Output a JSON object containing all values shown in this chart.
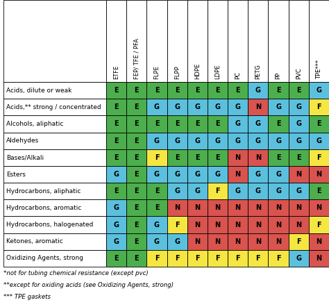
{
  "chemicals": [
    "Acids, dilute or weak",
    "Acids,** strong / concentrated",
    "Alcohols, aliphatic",
    "Aldehydes",
    "Bases/Alkali",
    "Esters",
    "Hydrocarbons, aliphatic",
    "Hydrocarbons, aromatic",
    "Hydrocarbons, halogenated",
    "Ketones, aromatic",
    "Oxidizing Agents, strong"
  ],
  "materials": [
    "ETFE",
    "FEP/ TFE / PFA",
    "FLPE",
    "FLPP",
    "HDPE",
    "LDPE",
    "PC",
    "PETG",
    "PP",
    "PVC",
    "TPE***"
  ],
  "ratings": [
    [
      "E",
      "E",
      "E",
      "E",
      "E",
      "E",
      "E",
      "G",
      "E",
      "E",
      "G"
    ],
    [
      "E",
      "E",
      "G",
      "G",
      "G",
      "G",
      "G",
      "N",
      "G",
      "G",
      "F"
    ],
    [
      "E",
      "E",
      "E",
      "E",
      "E",
      "E",
      "G",
      "G",
      "E",
      "G",
      "E"
    ],
    [
      "E",
      "E",
      "G",
      "G",
      "G",
      "G",
      "G",
      "G",
      "G",
      "G",
      "G"
    ],
    [
      "E",
      "E",
      "F",
      "E",
      "E",
      "E",
      "N",
      "N",
      "E",
      "E",
      "F"
    ],
    [
      "G",
      "E",
      "G",
      "G",
      "G",
      "G",
      "N",
      "G",
      "G",
      "N",
      "N"
    ],
    [
      "E",
      "E",
      "E",
      "G",
      "G",
      "F",
      "G",
      "G",
      "G",
      "G",
      "E"
    ],
    [
      "G",
      "E",
      "E",
      "N",
      "N",
      "N",
      "N",
      "N",
      "N",
      "N",
      "N"
    ],
    [
      "G",
      "E",
      "G",
      "F",
      "N",
      "N",
      "N",
      "N",
      "N",
      "N",
      "F"
    ],
    [
      "G",
      "E",
      "G",
      "G",
      "N",
      "N",
      "N",
      "N",
      "N",
      "F",
      "N"
    ],
    [
      "E",
      "E",
      "F",
      "F",
      "F",
      "F",
      "F",
      "F",
      "F",
      "G",
      "N"
    ]
  ],
  "color_map": {
    "E": "#4cae4c",
    "G": "#5bc0de",
    "F": "#f5e642",
    "N": "#d9534f"
  },
  "footnotes": [
    "*not for tubing chemical resistance (except pvc)",
    "**except for oxiding acids (see Oxidizing Agents, strong)",
    "*** TPE gaskets"
  ],
  "fig_width": 4.74,
  "fig_height": 4.42,
  "dpi": 100
}
